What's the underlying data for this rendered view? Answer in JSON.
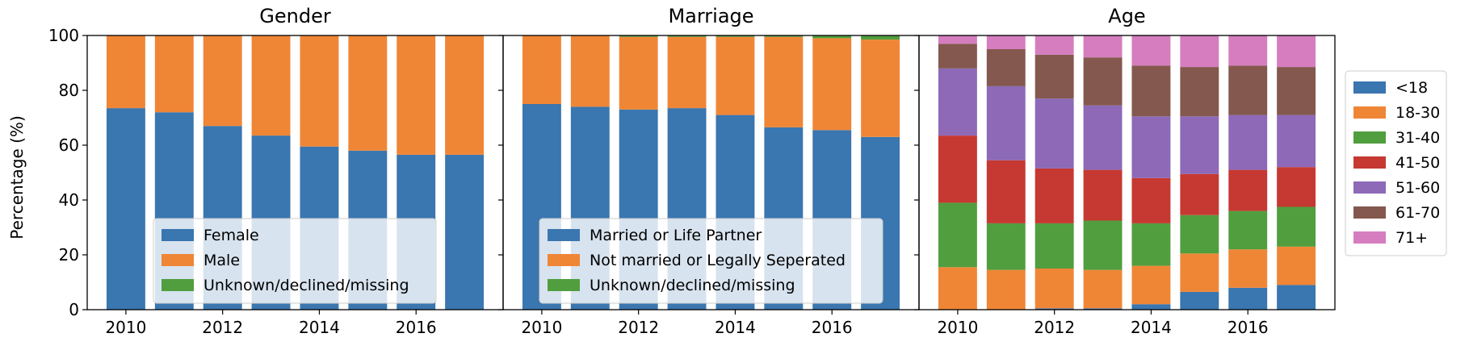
{
  "figure": {
    "ylabel": "Percentage (%)",
    "ylim": [
      0,
      100
    ],
    "yticks": [
      "0",
      "20",
      "40",
      "60",
      "80",
      "100"
    ],
    "xticks": [
      "2010",
      "2012",
      "2014",
      "2016"
    ]
  },
  "colors": {
    "blue": "#3a76af",
    "orange": "#ef8636",
    "green": "#519e3e",
    "red": "#c53932",
    "purple": "#8d69b8",
    "brown": "#84584e",
    "pink": "#d57dbf"
  },
  "chart_data": [
    {
      "type": "bar",
      "stacked": true,
      "title": "Gender",
      "categories": [
        2010,
        2011,
        2012,
        2013,
        2014,
        2015,
        2016,
        2017
      ],
      "legend_position": "lower-center",
      "series": [
        {
          "name": "Female",
          "color": "#3a76af",
          "values": [
            73.5,
            72,
            67,
            63.5,
            59.5,
            58,
            56.5,
            56.5
          ]
        },
        {
          "name": "Male",
          "color": "#ef8636",
          "values": [
            26.5,
            28,
            33,
            36.5,
            40.5,
            42,
            43.5,
            43.5
          ]
        },
        {
          "name": "Unknown/declined/missing",
          "color": "#519e3e",
          "values": [
            0,
            0,
            0,
            0,
            0,
            0,
            0,
            0
          ]
        }
      ]
    },
    {
      "type": "bar",
      "stacked": true,
      "title": "Marriage",
      "categories": [
        2010,
        2011,
        2012,
        2013,
        2014,
        2015,
        2016,
        2017
      ],
      "legend_position": "lower-center",
      "series": [
        {
          "name": "Married or Life Partner",
          "color": "#3a76af",
          "values": [
            75,
            74,
            73,
            73.5,
            71,
            66.5,
            65.5,
            63
          ]
        },
        {
          "name": "Not married or Legally Seperated",
          "color": "#ef8636",
          "values": [
            25,
            26,
            26.5,
            26,
            28.5,
            33,
            33.5,
            35.5
          ]
        },
        {
          "name": "Unknown/declined/missing",
          "color": "#519e3e",
          "values": [
            0,
            0,
            0.5,
            0.5,
            0.5,
            0.5,
            1,
            1.5
          ]
        }
      ]
    },
    {
      "type": "bar",
      "stacked": true,
      "title": "Age",
      "categories": [
        2010,
        2011,
        2012,
        2013,
        2014,
        2015,
        2016,
        2017
      ],
      "legend_position": "right-outside",
      "series": [
        {
          "name": "<18",
          "color": "#3a76af",
          "values": [
            0,
            0,
            0.5,
            0.5,
            2,
            6.5,
            8,
            9
          ]
        },
        {
          "name": "18-30",
          "color": "#ef8636",
          "values": [
            15.5,
            14.5,
            14.5,
            14,
            14,
            14,
            14,
            14
          ]
        },
        {
          "name": "31-40",
          "color": "#519e3e",
          "values": [
            23.5,
            17,
            16.5,
            18,
            15.5,
            14,
            14,
            14.5
          ]
        },
        {
          "name": "41-50",
          "color": "#c53932",
          "values": [
            24.5,
            23,
            20,
            18.5,
            16.5,
            15,
            15,
            14.5
          ]
        },
        {
          "name": "51-60",
          "color": "#8d69b8",
          "values": [
            24.5,
            27,
            25.5,
            23.5,
            22.5,
            21,
            20,
            19
          ]
        },
        {
          "name": "61-70",
          "color": "#84584e",
          "values": [
            9,
            13.5,
            16,
            17.5,
            18.5,
            18,
            18,
            17.5
          ]
        },
        {
          "name": "71+",
          "color": "#d57dbf",
          "values": [
            3,
            5,
            7,
            8,
            11,
            11.5,
            11,
            11.5
          ]
        }
      ]
    }
  ]
}
